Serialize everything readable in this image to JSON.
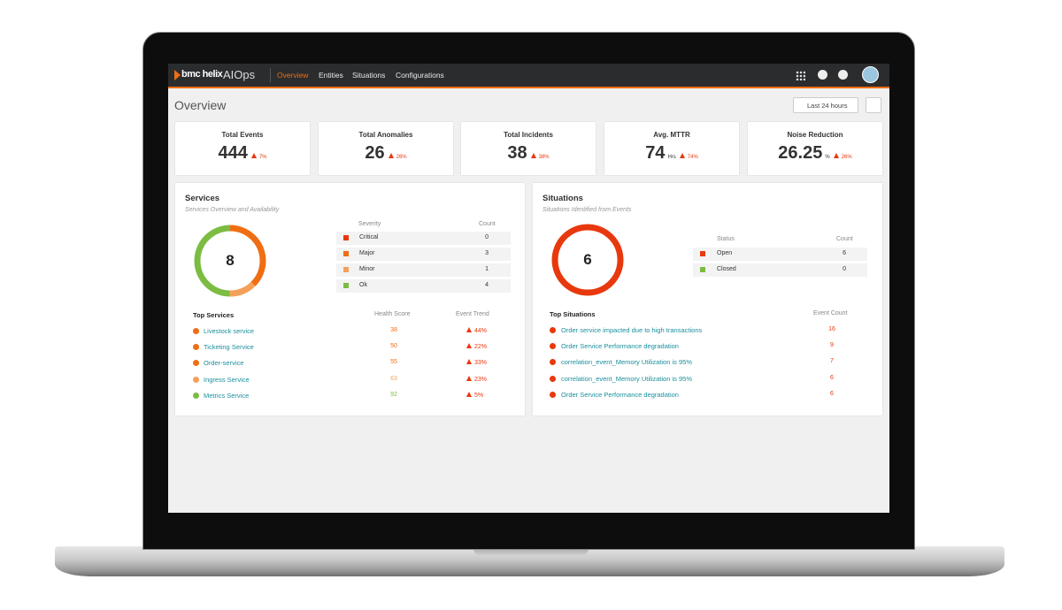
{
  "nav": {
    "brand": "bmc helix",
    "product": "AIOps",
    "items": [
      "Overview",
      "Entities",
      "Situations",
      "Configurations"
    ]
  },
  "page": {
    "title": "Overview",
    "time_range": "Last 24 hours"
  },
  "kpis": [
    {
      "label": "Total Events",
      "value": "444",
      "change": "7%"
    },
    {
      "label": "Total Anomalies",
      "value": "26",
      "change": "26%"
    },
    {
      "label": "Total Incidents",
      "value": "38",
      "change": "38%"
    },
    {
      "label": "Avg. MTTR",
      "value": "74",
      "unit": "Hrs",
      "change": "74%"
    },
    {
      "label": "Noise Reduction",
      "value": "26.25",
      "unit": "%",
      "change": "26%"
    }
  ],
  "services": {
    "title": "Services",
    "subtitle": "Services Overview and Availability",
    "total": 8,
    "category_header": "Severity",
    "count_header": "Count",
    "rows": [
      {
        "label": "Critical",
        "count": 0,
        "color": "#e8380d"
      },
      {
        "label": "Major",
        "count": 3,
        "color": "#f06e12"
      },
      {
        "label": "Minor",
        "count": 1,
        "color": "#f5a05a"
      },
      {
        "label": "Ok",
        "count": 4,
        "color": "#7cbc42"
      }
    ],
    "top_title": "Top Services",
    "score_header": "Health Score",
    "trend_header": "Event Trend",
    "top": [
      {
        "name": "Livestock service",
        "score": 38,
        "trend": "44%",
        "color": "#f06e12"
      },
      {
        "name": "Ticketing Service",
        "score": 50,
        "trend": "22%",
        "color": "#f06e12"
      },
      {
        "name": "Order-service",
        "score": 55,
        "trend": "33%",
        "color": "#f06e12"
      },
      {
        "name": "Ingress Service",
        "score": 63,
        "trend": "23%",
        "color": "#f5a05a"
      },
      {
        "name": "Metrics Service",
        "score": 92,
        "trend": "5%",
        "color": "#7cbc42"
      }
    ]
  },
  "situations": {
    "title": "Situations",
    "subtitle": "Situations Identified from Events",
    "total": 6,
    "category_header": "Status",
    "count_header": "Count",
    "rows": [
      {
        "label": "Open",
        "count": 6,
        "color": "#e8380d"
      },
      {
        "label": "Closed",
        "count": 0,
        "color": "#7cbc42"
      }
    ],
    "top_title": "Top Situations",
    "count_col_header": "Event Count",
    "top": [
      {
        "name": "Order service impacted due to high transactions",
        "count": 16
      },
      {
        "name": "Order Service Performance degradation",
        "count": 9
      },
      {
        "name": "correlation_event_Memory Utilization is 95%",
        "count": 7
      },
      {
        "name": "correlation_event_Memory Utilization is 95%",
        "count": 6
      },
      {
        "name": "Order Service Performance degradation",
        "count": 6
      }
    ]
  }
}
